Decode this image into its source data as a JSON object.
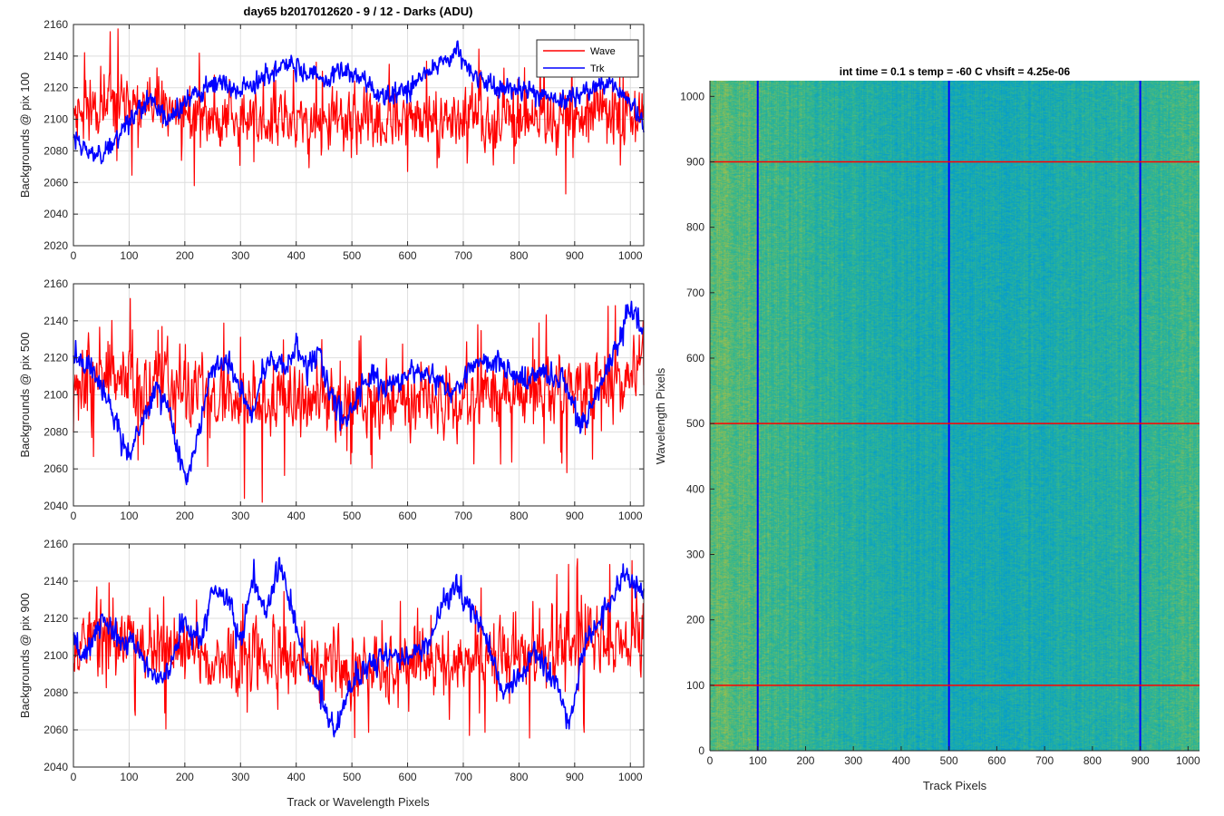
{
  "figure": {
    "title": "day65 b2017012620 - 9 / 12 - Darks (ADU)",
    "colors": {
      "wave": "#ff0000",
      "trk": "#0000ff",
      "axis": "#262626",
      "grid": "#dedede"
    }
  },
  "chart_data": [
    {
      "type": "line",
      "title": "day65 b2017012620 - 9 / 12 - Darks (ADU)",
      "xlabel": "",
      "ylabel": "Backgrounds @ pix 100",
      "xlim": [
        0,
        1024
      ],
      "ylim": [
        2020,
        2160
      ],
      "xticks": [
        0,
        100,
        200,
        300,
        400,
        500,
        600,
        700,
        800,
        900,
        1000
      ],
      "yticks": [
        2020,
        2040,
        2060,
        2080,
        2100,
        2120,
        2140,
        2160
      ],
      "grid": true,
      "legend": {
        "position": "top-right",
        "entries": [
          "Wave",
          "Trk"
        ]
      },
      "series": [
        {
          "name": "Wave",
          "color": "#ff0000",
          "mean": 2102,
          "noise": 12,
          "spike": 24,
          "seed": 11,
          "trend": [
            [
              0,
              2110
            ],
            [
              100,
              2108
            ],
            [
              200,
              2104
            ],
            [
              300,
              2100
            ],
            [
              400,
              2098
            ],
            [
              500,
              2098
            ],
            [
              600,
              2099
            ],
            [
              700,
              2100
            ],
            [
              800,
              2100
            ],
            [
              900,
              2102
            ],
            [
              1024,
              2106
            ]
          ]
        },
        {
          "name": "Trk",
          "color": "#0000ff",
          "mean": 2110,
          "noise": 4,
          "spike": 4,
          "seed": 23,
          "trend": [
            [
              0,
              2090
            ],
            [
              30,
              2078
            ],
            [
              60,
              2080
            ],
            [
              100,
              2100
            ],
            [
              140,
              2112
            ],
            [
              170,
              2098
            ],
            [
              200,
              2110
            ],
            [
              230,
              2118
            ],
            [
              260,
              2124
            ],
            [
              300,
              2118
            ],
            [
              330,
              2124
            ],
            [
              360,
              2130
            ],
            [
              390,
              2135
            ],
            [
              420,
              2128
            ],
            [
              460,
              2124
            ],
            [
              480,
              2132
            ],
            [
              500,
              2130
            ],
            [
              540,
              2118
            ],
            [
              560,
              2114
            ],
            [
              600,
              2120
            ],
            [
              640,
              2132
            ],
            [
              670,
              2138
            ],
            [
              690,
              2144
            ],
            [
              720,
              2128
            ],
            [
              760,
              2120
            ],
            [
              800,
              2118
            ],
            [
              840,
              2115
            ],
            [
              880,
              2112
            ],
            [
              920,
              2118
            ],
            [
              960,
              2124
            ],
            [
              1000,
              2112
            ],
            [
              1024,
              2096
            ]
          ]
        }
      ]
    },
    {
      "type": "line",
      "title": "",
      "xlabel": "",
      "ylabel": "Backgrounds @ pix 500",
      "xlim": [
        0,
        1024
      ],
      "ylim": [
        2040,
        2160
      ],
      "xticks": [
        0,
        100,
        200,
        300,
        400,
        500,
        600,
        700,
        800,
        900,
        1000
      ],
      "yticks": [
        2040,
        2060,
        2080,
        2100,
        2120,
        2140,
        2160
      ],
      "grid": true,
      "series": [
        {
          "name": "Wave",
          "color": "#ff0000",
          "mean": 2100,
          "noise": 12,
          "spike": 26,
          "seed": 37,
          "trend": [
            [
              0,
              2110
            ],
            [
              100,
              2108
            ],
            [
              200,
              2102
            ],
            [
              300,
              2098
            ],
            [
              400,
              2096
            ],
            [
              500,
              2096
            ],
            [
              600,
              2098
            ],
            [
              700,
              2098
            ],
            [
              800,
              2100
            ],
            [
              900,
              2104
            ],
            [
              1024,
              2112
            ]
          ]
        },
        {
          "name": "Trk",
          "color": "#0000ff",
          "mean": 2100,
          "noise": 4,
          "spike": 4,
          "seed": 41,
          "trend": [
            [
              0,
              2118
            ],
            [
              30,
              2116
            ],
            [
              60,
              2100
            ],
            [
              80,
              2080
            ],
            [
              100,
              2068
            ],
            [
              130,
              2090
            ],
            [
              150,
              2104
            ],
            [
              170,
              2092
            ],
            [
              190,
              2068
            ],
            [
              205,
              2052
            ],
            [
              230,
              2090
            ],
            [
              250,
              2114
            ],
            [
              280,
              2118
            ],
            [
              300,
              2102
            ],
            [
              320,
              2090
            ],
            [
              350,
              2120
            ],
            [
              380,
              2112
            ],
            [
              400,
              2126
            ],
            [
              420,
              2112
            ],
            [
              440,
              2124
            ],
            [
              460,
              2100
            ],
            [
              490,
              2086
            ],
            [
              520,
              2106
            ],
            [
              540,
              2112
            ],
            [
              560,
              2102
            ],
            [
              590,
              2108
            ],
            [
              620,
              2114
            ],
            [
              650,
              2108
            ],
            [
              680,
              2100
            ],
            [
              720,
              2116
            ],
            [
              760,
              2120
            ],
            [
              800,
              2108
            ],
            [
              840,
              2112
            ],
            [
              880,
              2108
            ],
            [
              910,
              2082
            ],
            [
              940,
              2100
            ],
            [
              980,
              2130
            ],
            [
              1000,
              2148
            ],
            [
              1024,
              2134
            ]
          ]
        }
      ]
    },
    {
      "type": "line",
      "title": "",
      "xlabel": "Track or Wavelength Pixels",
      "ylabel": "Backgrounds @ pix 900",
      "xlim": [
        0,
        1024
      ],
      "ylim": [
        2040,
        2160
      ],
      "xticks": [
        0,
        100,
        200,
        300,
        400,
        500,
        600,
        700,
        800,
        900,
        1000
      ],
      "yticks": [
        2040,
        2060,
        2080,
        2100,
        2120,
        2140,
        2160
      ],
      "grid": true,
      "series": [
        {
          "name": "Wave",
          "color": "#ff0000",
          "mean": 2102,
          "noise": 12,
          "spike": 24,
          "seed": 53,
          "trend": [
            [
              0,
              2110
            ],
            [
              100,
              2108
            ],
            [
              200,
              2102
            ],
            [
              300,
              2098
            ],
            [
              400,
              2096
            ],
            [
              500,
              2094
            ],
            [
              600,
              2096
            ],
            [
              700,
              2098
            ],
            [
              800,
              2100
            ],
            [
              900,
              2106
            ],
            [
              1024,
              2112
            ]
          ]
        },
        {
          "name": "Trk",
          "color": "#0000ff",
          "mean": 2100,
          "noise": 4,
          "spike": 4,
          "seed": 67,
          "trend": [
            [
              0,
              2112
            ],
            [
              20,
              2098
            ],
            [
              50,
              2120
            ],
            [
              80,
              2110
            ],
            [
              110,
              2108
            ],
            [
              140,
              2090
            ],
            [
              170,
              2088
            ],
            [
              200,
              2118
            ],
            [
              230,
              2108
            ],
            [
              250,
              2138
            ],
            [
              280,
              2130
            ],
            [
              300,
              2108
            ],
            [
              320,
              2142
            ],
            [
              345,
              2122
            ],
            [
              370,
              2148
            ],
            [
              390,
              2128
            ],
            [
              410,
              2102
            ],
            [
              430,
              2090
            ],
            [
              470,
              2058
            ],
            [
              490,
              2080
            ],
            [
              520,
              2092
            ],
            [
              560,
              2100
            ],
            [
              600,
              2098
            ],
            [
              640,
              2108
            ],
            [
              660,
              2126
            ],
            [
              690,
              2138
            ],
            [
              710,
              2126
            ],
            [
              740,
              2112
            ],
            [
              770,
              2080
            ],
            [
              800,
              2088
            ],
            [
              830,
              2102
            ],
            [
              860,
              2088
            ],
            [
              890,
              2064
            ],
            [
              920,
              2108
            ],
            [
              960,
              2128
            ],
            [
              990,
              2144
            ],
            [
              1024,
              2134
            ]
          ]
        }
      ]
    },
    {
      "type": "heatmap",
      "title": "int time = 0.1 s   temp = -60 C   vhsift = 4.25e-06",
      "xlabel": "Track Pixels",
      "ylabel": "Wavelength Pixels",
      "xlim": [
        0,
        1024
      ],
      "ylim": [
        0,
        1024
      ],
      "xticks": [
        0,
        100,
        200,
        300,
        400,
        500,
        600,
        700,
        800,
        900,
        1000
      ],
      "yticks": [
        0,
        100,
        200,
        300,
        400,
        500,
        600,
        700,
        800,
        900,
        1000
      ],
      "colormap": "parula",
      "marker_rows": [
        100,
        500,
        900
      ],
      "marker_cols": [
        100,
        500,
        900
      ],
      "marker_row_color": "#ff0000",
      "marker_col_color": "#0000ff"
    }
  ]
}
